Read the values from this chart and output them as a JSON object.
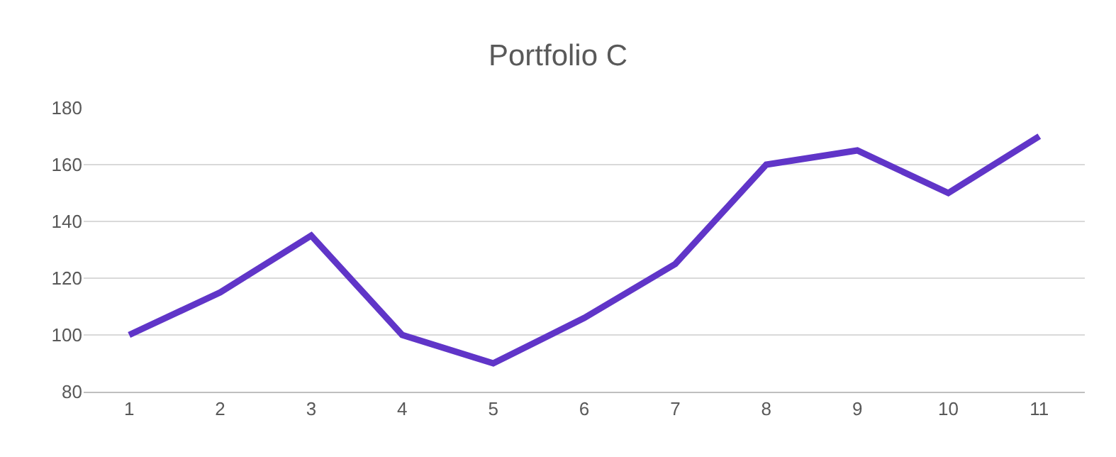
{
  "chart_data": {
    "type": "line",
    "title": "Portfolio C",
    "categories": [
      "1",
      "2",
      "3",
      "4",
      "5",
      "6",
      "7",
      "8",
      "9",
      "10",
      "11"
    ],
    "series": [
      {
        "color": "#6035c8",
        "values": [
          100,
          115,
          135,
          100,
          90,
          106,
          125,
          160,
          165,
          150,
          170
        ]
      }
    ],
    "ylim": [
      80,
      180
    ],
    "yticks": [
      80,
      100,
      120,
      140,
      160,
      180
    ],
    "grid": "y",
    "marker": "none",
    "line_style": "solid"
  }
}
